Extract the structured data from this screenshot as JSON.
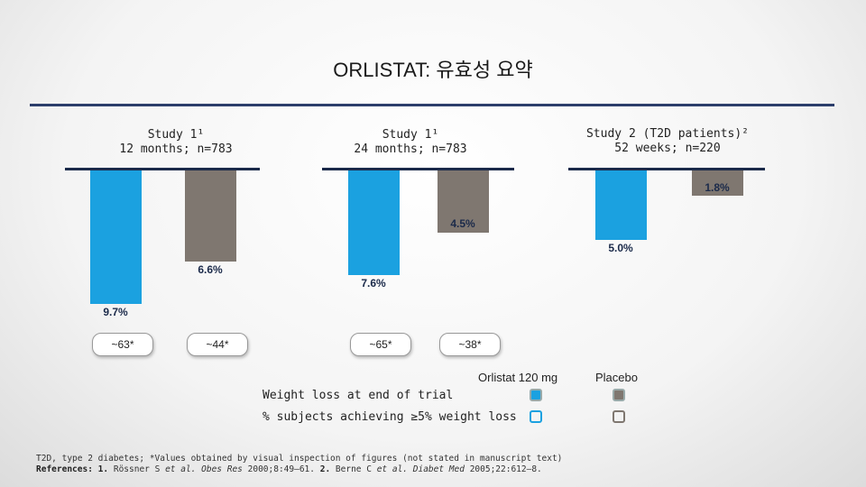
{
  "title": "ORLISTAT: 유효성 요약",
  "colors": {
    "orlistat": "#1ba1e0",
    "placebo": "#7f7770",
    "baseline": "#1b2a4a",
    "rule": "#2c3e6b"
  },
  "chart_data": [
    {
      "type": "bar",
      "title_line1": "Study 1¹",
      "title_line2": "12 months; n=783",
      "series": [
        {
          "name": "Orlistat 120 mg",
          "value": -9.7,
          "label": "9.7%",
          "responders": "~63*"
        },
        {
          "name": "Placebo",
          "value": -6.6,
          "label": "6.6%",
          "responders": "~44*"
        }
      ]
    },
    {
      "type": "bar",
      "title_line1": "Study 1¹",
      "title_line2": "24 months; n=783",
      "series": [
        {
          "name": "Orlistat 120 mg",
          "value": -7.6,
          "label": "7.6%",
          "responders": "~65*"
        },
        {
          "name": "Placebo",
          "value": -4.5,
          "label": "4.5%",
          "responders": "~38*"
        }
      ]
    },
    {
      "type": "bar",
      "title_line1": "Study 2 (T2D patients)²",
      "title_line2": "52 weeks; n=220",
      "series": [
        {
          "name": "Orlistat 120 mg",
          "value": -5.0,
          "label": "5.0%"
        },
        {
          "name": "Placebo",
          "value": -1.8,
          "label": "1.8%"
        }
      ]
    }
  ],
  "legend": {
    "orlistat": "Orlistat 120 mg",
    "placebo": "Placebo",
    "row1": "Weight loss at end of trial",
    "row2": "% subjects achieving ≥5% weight loss"
  },
  "footnote": {
    "line1": "T2D, type 2 diabetes; *Values obtained by visual inspection of figures (not stated in manuscript text)",
    "refs_label": "References:",
    "ref1_num": "1.",
    "ref1_author": "Rössner S",
    "ref1_etal": "et al.",
    "ref1_journal": "Obes Res",
    "ref1_cite": "2000;8:49–61.",
    "ref2_num": "2.",
    "ref2_author": "Berne C",
    "ref2_etal": "et al.",
    "ref2_journal": "Diabet Med",
    "ref2_cite": "2005;22:612–8."
  }
}
